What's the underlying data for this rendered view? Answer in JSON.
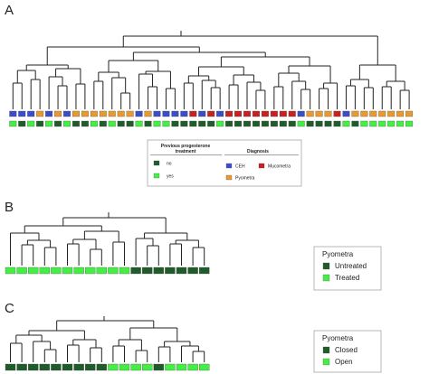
{
  "colors": {
    "cEH": "#3a4dcc",
    "mucometra": "#cc1f1f",
    "pyometra": "#e89a2e",
    "dark_green": "#1f5c2a",
    "light_green": "#44ee44",
    "line": "#222222"
  },
  "panels": [
    {
      "letter": "A",
      "diagnosis_row": [
        "cEH",
        "cEH",
        "cEH",
        "pyometra",
        "cEH",
        "pyometra",
        "cEH",
        "pyometra",
        "pyometra",
        "pyometra",
        "pyometra",
        "pyometra",
        "pyometra",
        "pyometra",
        "cEH",
        "pyometra",
        "cEH",
        "cEH",
        "cEH",
        "cEH",
        "mucometra",
        "cEH",
        "mucometra",
        "cEH",
        "mucometra",
        "mucometra",
        "mucometra",
        "mucometra",
        "mucometra",
        "mucometra",
        "mucometra",
        "mucometra",
        "cEH",
        "pyometra",
        "pyometra",
        "pyometra",
        "mucometra",
        "cEH",
        "pyometra",
        "pyometra",
        "pyometra",
        "pyometra",
        "pyometra",
        "pyometra",
        "pyometra"
      ],
      "treatment_row": [
        "light_green",
        "dark_green",
        "light_green",
        "dark_green",
        "light_green",
        "dark_green",
        "light_green",
        "dark_green",
        "dark_green",
        "light_green",
        "dark_green",
        "light_green",
        "dark_green",
        "dark_green",
        "light_green",
        "dark_green",
        "light_green",
        "light_green",
        "dark_green",
        "dark_green",
        "dark_green",
        "dark_green",
        "dark_green",
        "light_green",
        "dark_green",
        "dark_green",
        "dark_green",
        "dark_green",
        "dark_green",
        "dark_green",
        "dark_green",
        "dark_green",
        "light_green",
        "dark_green",
        "dark_green",
        "dark_green",
        "dark_green",
        "light_green",
        "dark_green",
        "light_green",
        "light_green",
        "light_green",
        "light_green",
        "light_green",
        "light_green"
      ],
      "legend": {
        "treatment_title_line1": "Previous progesterone",
        "treatment_title_line2": "treatment",
        "treatment_items": [
          {
            "label": "no",
            "color": "dark_green"
          },
          {
            "label": "yes",
            "color": "light_green"
          }
        ],
        "diagnosis_title": "Diagnosis",
        "diagnosis_items": [
          {
            "label": "CEH",
            "color": "cEH"
          },
          {
            "label": "Mucometra",
            "color": "mucometra"
          },
          {
            "label": "Pyometra",
            "color": "pyometra"
          }
        ]
      }
    },
    {
      "letter": "B",
      "leaf_row": [
        "light_green",
        "light_green",
        "light_green",
        "light_green",
        "light_green",
        "light_green",
        "light_green",
        "light_green",
        "light_green",
        "light_green",
        "light_green",
        "dark_green",
        "dark_green",
        "dark_green",
        "dark_green",
        "dark_green",
        "dark_green",
        "dark_green"
      ],
      "legend": {
        "title": "Pyometra",
        "items": [
          {
            "label": "Untreated",
            "color": "dark_green"
          },
          {
            "label": "Treated",
            "color": "light_green"
          }
        ]
      }
    },
    {
      "letter": "C",
      "leaf_row": [
        "dark_green",
        "dark_green",
        "dark_green",
        "dark_green",
        "dark_green",
        "dark_green",
        "dark_green",
        "dark_green",
        "dark_green",
        "light_green",
        "light_green",
        "light_green",
        "light_green",
        "dark_green",
        "light_green",
        "light_green",
        "light_green",
        "light_green"
      ],
      "legend": {
        "title": "Pyometra",
        "items": [
          {
            "label": "Closed",
            "color": "dark_green"
          },
          {
            "label": "Open",
            "color": "light_green"
          }
        ]
      }
    }
  ]
}
